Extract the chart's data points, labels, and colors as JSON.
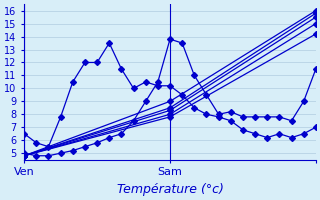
{
  "background_color": "#d8eef8",
  "grid_color": "#b0cce0",
  "line_color": "#0000cc",
  "marker_color": "#0000cc",
  "xlabel": "Température (°c)",
  "ylim": [
    4.5,
    16.5
  ],
  "xlim": [
    0,
    48
  ],
  "xtick_positions": [
    0,
    24,
    48
  ],
  "xtick_labels": [
    "Ven",
    "Sam",
    ""
  ],
  "ytick_positions": [
    5,
    6,
    7,
    8,
    9,
    10,
    11,
    12,
    13,
    14,
    15,
    16
  ],
  "vline_positions": [
    0,
    24
  ],
  "series": [
    {
      "x": [
        0,
        2,
        4,
        6,
        8,
        10,
        12,
        14,
        16,
        18,
        20,
        22,
        24,
        26,
        28,
        30,
        32,
        34,
        36,
        38,
        40,
        42,
        44,
        46,
        48
      ],
      "y": [
        6.5,
        5.8,
        5.5,
        7.8,
        10.5,
        12.0,
        12.0,
        13.5,
        11.5,
        10.0,
        10.5,
        10.2,
        10.2,
        9.5,
        8.5,
        8.0,
        7.8,
        7.5,
        6.8,
        6.5,
        6.2,
        6.5,
        6.2,
        6.5,
        7.0
      ],
      "style": "-D",
      "ms": 3
    },
    {
      "x": [
        0,
        24,
        48
      ],
      "y": [
        4.8,
        7.8,
        14.2
      ],
      "style": "-D",
      "ms": 3
    },
    {
      "x": [
        0,
        24,
        48
      ],
      "y": [
        4.8,
        8.0,
        15.0
      ],
      "style": "-D",
      "ms": 3
    },
    {
      "x": [
        0,
        24,
        48
      ],
      "y": [
        4.8,
        8.3,
        15.5
      ],
      "style": "-D",
      "ms": 3
    },
    {
      "x": [
        0,
        24,
        48
      ],
      "y": [
        4.8,
        8.5,
        15.8
      ],
      "style": "-D",
      "ms": 3
    },
    {
      "x": [
        0,
        24,
        48
      ],
      "y": [
        4.8,
        9.0,
        16.0
      ],
      "style": "-D",
      "ms": 3
    },
    {
      "x": [
        0,
        2,
        4,
        6,
        8,
        10,
        12,
        14,
        16,
        18,
        20,
        22,
        24,
        26,
        28,
        30,
        32,
        34,
        36,
        38,
        40,
        42,
        44,
        46,
        48
      ],
      "y": [
        5.0,
        4.8,
        4.8,
        5.0,
        5.2,
        5.5,
        5.8,
        6.2,
        6.5,
        7.5,
        9.0,
        10.5,
        13.8,
        13.5,
        11.0,
        9.5,
        8.0,
        8.2,
        7.8,
        7.8,
        7.8,
        7.8,
        7.5,
        9.0,
        11.5
      ],
      "style": "-D",
      "ms": 3
    }
  ]
}
